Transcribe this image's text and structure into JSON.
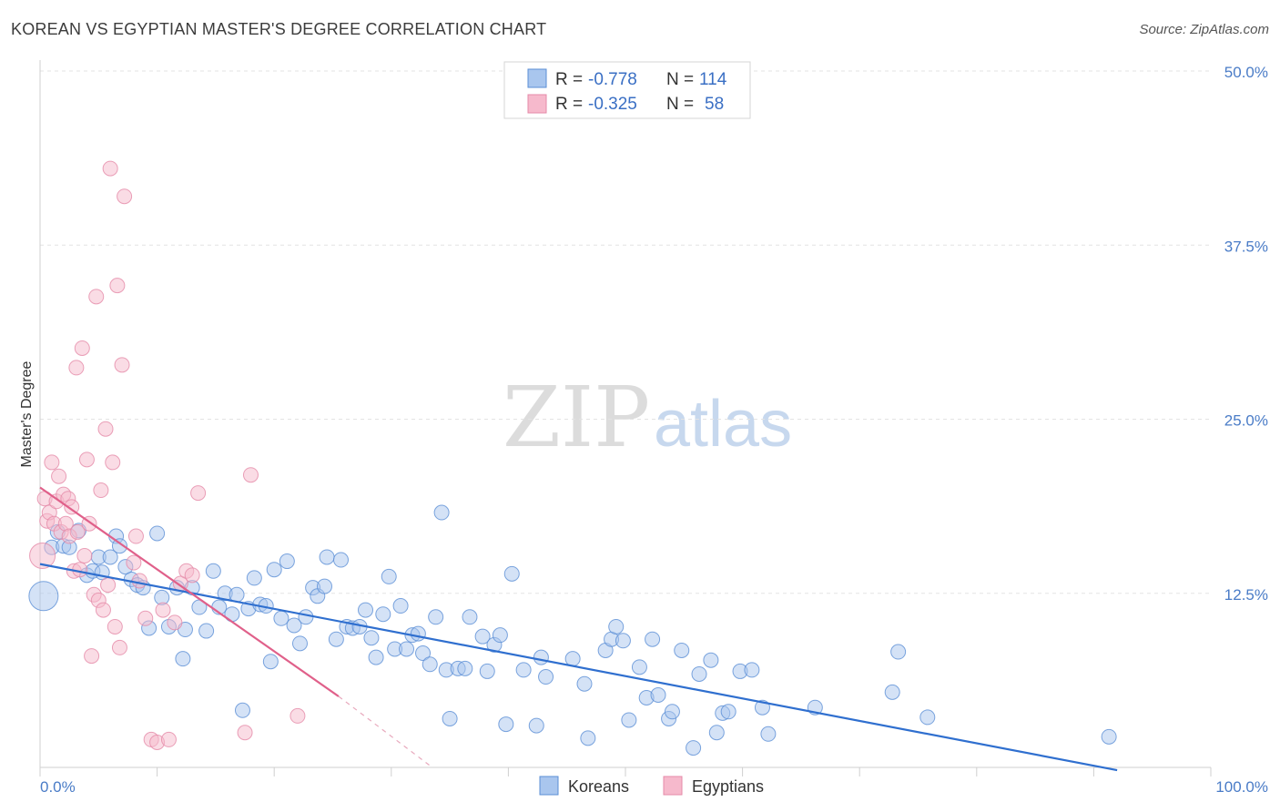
{
  "title": "KOREAN VS EGYPTIAN MASTER'S DEGREE CORRELATION CHART",
  "source": "Source: ZipAtlas.com",
  "watermark": {
    "zip": "ZIP",
    "atlas": "atlas"
  },
  "colors": {
    "korean_fill": "#a9c6ee",
    "korean_stroke": "#5b8fd6",
    "korean_line": "#2f6fcf",
    "egyptian_fill": "#f6b9cc",
    "egyptian_stroke": "#e58aa8",
    "egyptian_line": "#e0608a",
    "axis_text": "#4a7cc7",
    "grid": "#e3e3e3"
  },
  "legend": {
    "korean": {
      "r_label": "R =",
      "r_value": "-0.778",
      "n_label": "N =",
      "n_value": "114"
    },
    "egyptian": {
      "r_label": "R =",
      "r_value": "-0.325",
      "n_label": "N =",
      "n_value": "58"
    }
  },
  "chart_data": {
    "type": "scatter",
    "xlabel": "",
    "ylabel": "Master's Degree",
    "xlim": [
      0,
      100
    ],
    "ylim": [
      0,
      50
    ],
    "x_tick_labels": [
      "0.0%",
      "100.0%"
    ],
    "y_ticks": [
      12.5,
      25.0,
      37.5,
      50.0
    ],
    "y_tick_labels": [
      "12.5%",
      "25.0%",
      "37.5%",
      "50.0%"
    ],
    "grid": true,
    "legend_position": "top-center",
    "series": [
      {
        "name": "Koreans",
        "trend": {
          "x": [
            0,
            92
          ],
          "y": [
            14.6,
            -0.2
          ]
        },
        "points": [
          [
            0.3,
            12.3,
            16
          ],
          [
            1.0,
            15.8,
            8
          ],
          [
            1.5,
            16.9,
            8
          ],
          [
            2.0,
            15.9,
            8
          ],
          [
            2.5,
            15.8,
            8
          ],
          [
            3.3,
            17.0,
            8
          ],
          [
            4.0,
            13.8,
            8
          ],
          [
            4.5,
            14.1,
            8
          ],
          [
            5.0,
            15.1,
            8
          ],
          [
            5.3,
            14.0,
            8
          ],
          [
            6.0,
            15.1,
            8
          ],
          [
            6.5,
            16.6,
            8
          ],
          [
            6.8,
            15.9,
            8
          ],
          [
            7.3,
            14.4,
            8
          ],
          [
            7.8,
            13.5,
            8
          ],
          [
            8.3,
            13.1,
            8
          ],
          [
            8.8,
            12.9,
            8
          ],
          [
            9.3,
            10.0,
            8
          ],
          [
            10.0,
            16.8,
            8
          ],
          [
            10.4,
            12.2,
            8
          ],
          [
            11.0,
            10.1,
            8
          ],
          [
            11.7,
            12.9,
            8
          ],
          [
            12.2,
            7.8,
            8
          ],
          [
            12.4,
            9.9,
            8
          ],
          [
            13.0,
            12.9,
            8
          ],
          [
            13.6,
            11.5,
            8
          ],
          [
            14.2,
            9.8,
            8
          ],
          [
            14.8,
            14.1,
            8
          ],
          [
            15.3,
            11.5,
            8
          ],
          [
            15.8,
            12.5,
            8
          ],
          [
            16.4,
            11.0,
            8
          ],
          [
            16.8,
            12.4,
            8
          ],
          [
            17.3,
            4.1,
            8
          ],
          [
            17.8,
            11.4,
            8
          ],
          [
            18.3,
            13.6,
            8
          ],
          [
            18.8,
            11.7,
            8
          ],
          [
            19.3,
            11.6,
            8
          ],
          [
            19.7,
            7.6,
            8
          ],
          [
            20.0,
            14.2,
            8
          ],
          [
            20.6,
            10.7,
            8
          ],
          [
            21.1,
            14.8,
            8
          ],
          [
            21.7,
            10.2,
            8
          ],
          [
            22.2,
            8.9,
            8
          ],
          [
            22.7,
            10.8,
            8
          ],
          [
            23.3,
            12.9,
            8
          ],
          [
            23.7,
            12.3,
            8
          ],
          [
            24.3,
            13.0,
            8
          ],
          [
            24.5,
            15.1,
            8
          ],
          [
            25.3,
            9.2,
            8
          ],
          [
            25.7,
            14.9,
            8
          ],
          [
            26.2,
            10.1,
            8
          ],
          [
            26.7,
            10.0,
            8
          ],
          [
            27.3,
            10.1,
            8
          ],
          [
            27.8,
            11.3,
            8
          ],
          [
            28.3,
            9.3,
            8
          ],
          [
            28.7,
            7.9,
            8
          ],
          [
            29.3,
            11.0,
            8
          ],
          [
            29.8,
            13.7,
            8
          ],
          [
            30.3,
            8.5,
            8
          ],
          [
            30.8,
            11.6,
            8
          ],
          [
            31.3,
            8.5,
            8
          ],
          [
            31.8,
            9.5,
            8
          ],
          [
            32.3,
            9.6,
            8
          ],
          [
            32.7,
            8.2,
            8
          ],
          [
            33.3,
            7.4,
            8
          ],
          [
            33.8,
            10.8,
            8
          ],
          [
            34.3,
            18.3,
            8
          ],
          [
            34.7,
            7.0,
            8
          ],
          [
            35.0,
            3.5,
            8
          ],
          [
            35.7,
            7.1,
            8
          ],
          [
            36.3,
            7.1,
            8
          ],
          [
            36.7,
            10.8,
            8
          ],
          [
            37.8,
            9.4,
            8
          ],
          [
            38.2,
            6.9,
            8
          ],
          [
            38.8,
            8.8,
            8
          ],
          [
            39.3,
            9.5,
            8
          ],
          [
            39.8,
            3.1,
            8
          ],
          [
            40.3,
            13.9,
            8
          ],
          [
            41.3,
            7.0,
            8
          ],
          [
            42.4,
            3.0,
            8
          ],
          [
            42.8,
            7.9,
            8
          ],
          [
            43.2,
            6.5,
            8
          ],
          [
            45.5,
            7.8,
            8
          ],
          [
            46.5,
            6.0,
            8
          ],
          [
            46.8,
            2.1,
            8
          ],
          [
            48.3,
            8.4,
            8
          ],
          [
            48.8,
            9.2,
            8
          ],
          [
            49.2,
            10.1,
            8
          ],
          [
            49.8,
            9.1,
            8
          ],
          [
            50.3,
            3.4,
            8
          ],
          [
            51.2,
            7.2,
            8
          ],
          [
            51.8,
            5.0,
            8
          ],
          [
            52.3,
            9.2,
            8
          ],
          [
            52.8,
            5.2,
            8
          ],
          [
            53.7,
            3.5,
            8
          ],
          [
            54.0,
            4.0,
            8
          ],
          [
            54.8,
            8.4,
            8
          ],
          [
            55.8,
            1.4,
            8
          ],
          [
            56.3,
            6.7,
            8
          ],
          [
            57.3,
            7.7,
            8
          ],
          [
            57.8,
            2.5,
            8
          ],
          [
            58.3,
            3.9,
            8
          ],
          [
            58.8,
            4.0,
            8
          ],
          [
            59.8,
            6.9,
            8
          ],
          [
            60.8,
            7.0,
            8
          ],
          [
            61.7,
            4.3,
            8
          ],
          [
            62.2,
            2.4,
            8
          ],
          [
            66.2,
            4.3,
            8
          ],
          [
            72.8,
            5.4,
            8
          ],
          [
            73.3,
            8.3,
            8
          ],
          [
            75.8,
            3.6,
            8
          ],
          [
            91.3,
            2.2,
            8
          ]
        ]
      },
      {
        "name": "Egyptians",
        "trend": {
          "x": [
            0,
            25.5
          ],
          "y": [
            20.1,
            5.1
          ]
        },
        "trend_dashed": {
          "x": [
            25.5,
            33.5
          ],
          "y": [
            5.1,
            0
          ]
        },
        "points": [
          [
            0.2,
            15.2,
            14
          ],
          [
            0.4,
            19.3,
            8
          ],
          [
            0.6,
            17.7,
            8
          ],
          [
            0.8,
            18.3,
            8
          ],
          [
            1.0,
            21.9,
            8
          ],
          [
            1.2,
            17.5,
            8
          ],
          [
            1.4,
            19.1,
            8
          ],
          [
            1.6,
            20.9,
            8
          ],
          [
            1.8,
            16.9,
            8
          ],
          [
            2.0,
            19.6,
            8
          ],
          [
            2.2,
            17.5,
            8
          ],
          [
            2.4,
            19.3,
            8
          ],
          [
            2.5,
            16.6,
            8
          ],
          [
            2.7,
            18.7,
            8
          ],
          [
            2.9,
            14.1,
            8
          ],
          [
            3.1,
            28.7,
            8
          ],
          [
            3.2,
            16.9,
            8
          ],
          [
            3.4,
            14.2,
            8
          ],
          [
            3.6,
            30.1,
            8
          ],
          [
            3.8,
            15.2,
            8
          ],
          [
            4.0,
            22.1,
            8
          ],
          [
            4.2,
            17.5,
            8
          ],
          [
            4.4,
            8.0,
            8
          ],
          [
            4.6,
            12.4,
            8
          ],
          [
            4.8,
            33.8,
            8
          ],
          [
            5.0,
            12.0,
            8
          ],
          [
            5.2,
            19.9,
            8
          ],
          [
            5.4,
            11.3,
            8
          ],
          [
            5.6,
            24.3,
            8
          ],
          [
            5.8,
            13.1,
            8
          ],
          [
            6.0,
            43.0,
            8
          ],
          [
            6.2,
            21.9,
            8
          ],
          [
            6.4,
            10.1,
            8
          ],
          [
            6.6,
            34.6,
            8
          ],
          [
            6.8,
            8.6,
            8
          ],
          [
            7.0,
            28.9,
            8
          ],
          [
            7.2,
            41.0,
            8
          ],
          [
            8.0,
            14.7,
            8
          ],
          [
            8.2,
            16.6,
            8
          ],
          [
            8.5,
            13.4,
            8
          ],
          [
            9.0,
            10.7,
            8
          ],
          [
            9.5,
            2.0,
            8
          ],
          [
            10.0,
            1.8,
            8
          ],
          [
            10.5,
            11.3,
            8
          ],
          [
            11.0,
            2.0,
            8
          ],
          [
            11.5,
            10.4,
            8
          ],
          [
            12.0,
            13.2,
            8
          ],
          [
            12.5,
            14.1,
            8
          ],
          [
            13.0,
            13.8,
            8
          ],
          [
            13.5,
            19.7,
            8
          ],
          [
            17.5,
            2.5,
            8
          ],
          [
            18.0,
            21.0,
            8
          ],
          [
            22.0,
            3.7,
            8
          ]
        ]
      }
    ]
  }
}
